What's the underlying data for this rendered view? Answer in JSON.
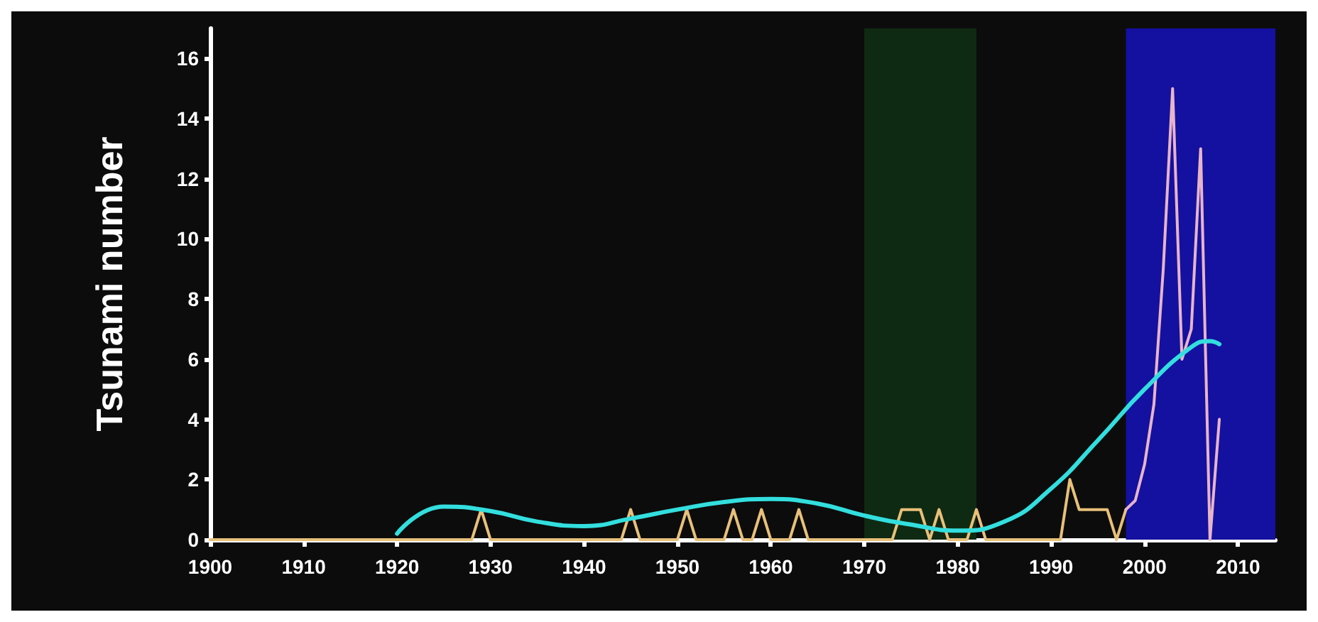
{
  "chart_data": {
    "type": "line",
    "ylabel": "Tsunami number",
    "xlim": [
      1900,
      2014
    ],
    "xticks": [
      1900,
      1910,
      1920,
      1930,
      1940,
      1950,
      1960,
      1970,
      1980,
      1990,
      2000,
      2010
    ],
    "ylim": [
      0,
      17
    ],
    "yticks": [
      0,
      2,
      4,
      6,
      8,
      10,
      12,
      14,
      16
    ],
    "grid": false,
    "marker": "none",
    "line_style": "solid",
    "bands": [
      {
        "axis": "x",
        "from": 1970,
        "to": 1982,
        "color": "#0f2a12"
      },
      {
        "axis": "x",
        "from": 1998,
        "to": 2014,
        "color": "#1410a0"
      }
    ],
    "series": [
      {
        "color": "#e8c07a",
        "x": [
          1900,
          1928,
          1929,
          1930,
          1944,
          1945,
          1946,
          1950,
          1951,
          1952,
          1955,
          1956,
          1957,
          1958,
          1959,
          1960,
          1962,
          1963,
          1964,
          1973,
          1974,
          1976,
          1977,
          1978,
          1979,
          1981,
          1982,
          1983,
          1991,
          1992,
          1993,
          1996,
          1997,
          1998
        ],
        "values": [
          0,
          0,
          1,
          0,
          0,
          1,
          0,
          0,
          1,
          0,
          0,
          1,
          0,
          0,
          1,
          0,
          0,
          1,
          0,
          0,
          1,
          1,
          0,
          1,
          0,
          0,
          1,
          0,
          0,
          2,
          1,
          1,
          0,
          1
        ]
      },
      {
        "color": "#e8b4c8",
        "x": [
          1998,
          1999,
          2000,
          2001,
          2002,
          2003,
          2004,
          2005,
          2006,
          2007,
          2008
        ],
        "values": [
          1,
          1.3,
          2.5,
          4.5,
          9,
          15,
          6,
          7,
          13,
          0,
          4
        ]
      },
      {
        "color": "#33dede",
        "x": [
          1920,
          1925,
          1930,
          1935,
          1940,
          1945,
          1950,
          1955,
          1960,
          1965,
          1970,
          1975,
          1980,
          1985,
          1990,
          1995,
          2000,
          2005,
          2007,
          2008
        ],
        "values": [
          0.2,
          1.1,
          0.95,
          0.6,
          0.45,
          0.7,
          1.0,
          1.25,
          1.35,
          1.2,
          0.8,
          0.5,
          0.3,
          0.6,
          1.7,
          3.3,
          5.0,
          6.4,
          6.6,
          6.5
        ]
      }
    ]
  }
}
